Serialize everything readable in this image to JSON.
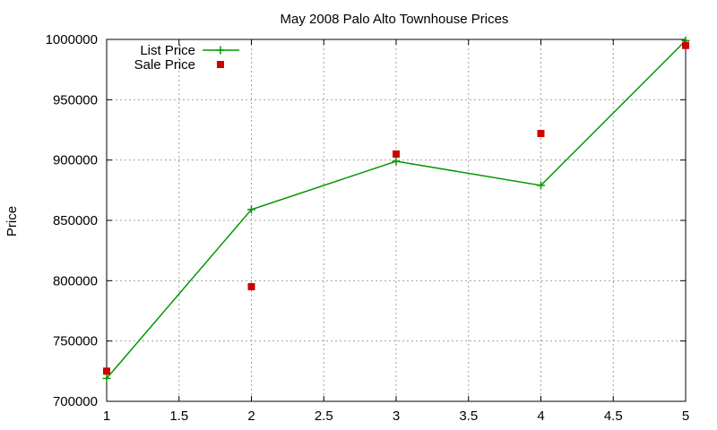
{
  "chart_data": {
    "type": "line",
    "title": "May 2008 Palo Alto Townhouse Prices",
    "xlabel": "",
    "ylabel": "Price",
    "xlim": [
      1,
      5
    ],
    "ylim": [
      700000,
      1000000
    ],
    "x_ticks": [
      "1",
      "1.5",
      "2",
      "2.5",
      "3",
      "3.5",
      "4",
      "4.5",
      "5"
    ],
    "y_ticks": [
      "700000",
      "750000",
      "800000",
      "850000",
      "900000",
      "950000",
      "1000000"
    ],
    "grid": true,
    "legend_position": "top-left",
    "series": [
      {
        "name": "List Price",
        "style": "lines+points",
        "marker": "plus",
        "color": "#009900",
        "x": [
          1,
          2,
          3,
          4,
          5
        ],
        "y": [
          719000,
          859000,
          899000,
          879000,
          999000
        ]
      },
      {
        "name": "Sale Price",
        "style": "points",
        "marker": "square",
        "color": "#cc0000",
        "x": [
          1,
          2,
          3,
          4,
          5
        ],
        "y": [
          725000,
          795000,
          905000,
          922000,
          995000
        ]
      }
    ]
  }
}
